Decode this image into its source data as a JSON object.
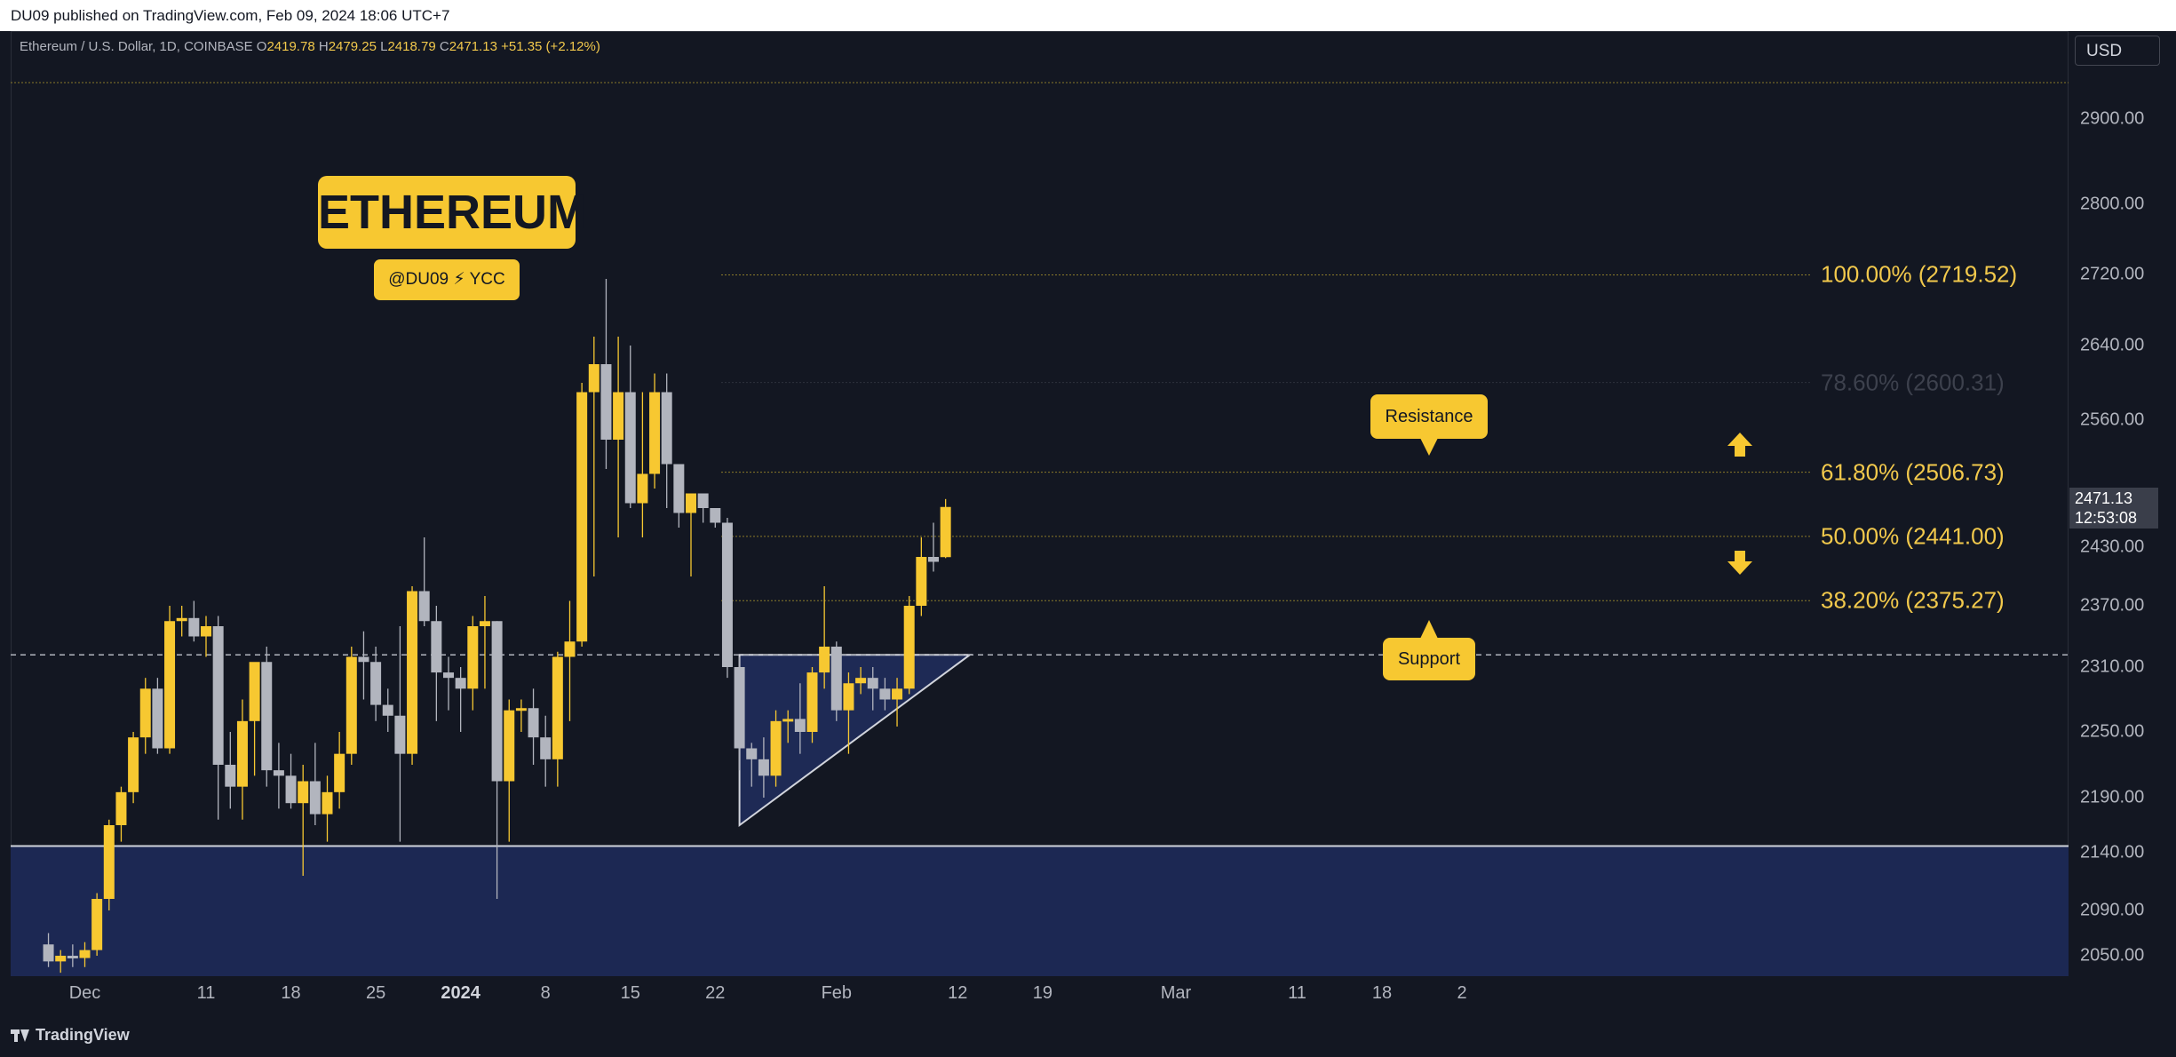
{
  "header": {
    "published_line": "DU09 published on TradingView.com, Feb 09, 2024 18:06 UTC+7"
  },
  "legend": {
    "symbol": "Ethereum / U.S. Dollar, 1D, COINBASE",
    "open_key": "O",
    "open": "2419.78",
    "high_key": "H",
    "high": "2479.25",
    "low_key": "L",
    "low": "2418.79",
    "close_key": "C",
    "close": "2471.13",
    "change": "+51.35 (+2.12%)"
  },
  "currency": "USD",
  "title_badge": "ETHEREUM",
  "author_badge": "@DU09 ⚡ YCC",
  "callouts": {
    "resistance": "Resistance",
    "support": "Support"
  },
  "last_price": {
    "value": "2471.13",
    "countdown": "12:53:08"
  },
  "footer": {
    "brand": "TradingView"
  },
  "colors": {
    "background": "#131722",
    "bull": "#f7c831",
    "bear": "#b2b5be",
    "zone": "#1c2853",
    "fib": "#c9a227"
  },
  "icons": {
    "up_arrow": "arrow-up-icon",
    "down_arrow": "arrow-down-icon",
    "logo": "tradingview-logo-icon"
  },
  "chart_data": {
    "type": "candlestick",
    "title": "ETHEREUM",
    "y_ticks": [
      "2900.00",
      "2800.00",
      "2720.00",
      "2640.00",
      "2560.00",
      "2430.00",
      "2370.00",
      "2310.00",
      "2250.00",
      "2190.00",
      "2140.00",
      "2090.00",
      "2050.00"
    ],
    "x_ticks": [
      {
        "label": "Dec",
        "day": 1
      },
      {
        "label": "11",
        "day": 11
      },
      {
        "label": "18",
        "day": 18
      },
      {
        "label": "25",
        "day": 25
      },
      {
        "label": "2024",
        "day": 32,
        "bold": true
      },
      {
        "label": "8",
        "day": 39
      },
      {
        "label": "15",
        "day": 46
      },
      {
        "label": "22",
        "day": 53
      },
      {
        "label": "Feb",
        "day": 63
      },
      {
        "label": "12",
        "day": 73
      },
      {
        "label": "19",
        "day": 80
      },
      {
        "label": "Mar",
        "day": 91
      },
      {
        "label": "11",
        "day": 101
      },
      {
        "label": "18",
        "day": 108
      },
      {
        "label": "2",
        "day": 115
      }
    ],
    "candles_ohlc_from_day_-3": [
      [
        2060,
        2070,
        2040,
        2045
      ],
      [
        2045,
        2055,
        2035,
        2050
      ],
      [
        2050,
        2060,
        2040,
        2048
      ],
      [
        2048,
        2062,
        2040,
        2055
      ],
      [
        2055,
        2105,
        2050,
        2100
      ],
      [
        2100,
        2170,
        2090,
        2165
      ],
      [
        2165,
        2200,
        2150,
        2195
      ],
      [
        2195,
        2250,
        2185,
        2245
      ],
      [
        2245,
        2300,
        2230,
        2290
      ],
      [
        2290,
        2300,
        2230,
        2235
      ],
      [
        2235,
        2370,
        2230,
        2355
      ],
      [
        2355,
        2370,
        2340,
        2358
      ],
      [
        2358,
        2375,
        2335,
        2340
      ],
      [
        2340,
        2360,
        2320,
        2350
      ],
      [
        2350,
        2360,
        2170,
        2220
      ],
      [
        2220,
        2250,
        2180,
        2200
      ],
      [
        2200,
        2280,
        2170,
        2260
      ],
      [
        2260,
        2310,
        2210,
        2315
      ],
      [
        2315,
        2330,
        2200,
        2215
      ],
      [
        2215,
        2240,
        2180,
        2210
      ],
      [
        2210,
        2230,
        2180,
        2185
      ],
      [
        2185,
        2220,
        2120,
        2205
      ],
      [
        2205,
        2240,
        2165,
        2175
      ],
      [
        2175,
        2210,
        2150,
        2195
      ],
      [
        2195,
        2250,
        2180,
        2230
      ],
      [
        2230,
        2330,
        2220,
        2320
      ],
      [
        2320,
        2345,
        2280,
        2315
      ],
      [
        2315,
        2330,
        2260,
        2275
      ],
      [
        2275,
        2290,
        2250,
        2265
      ],
      [
        2265,
        2350,
        2150,
        2230
      ],
      [
        2230,
        2390,
        2220,
        2385
      ],
      [
        2385,
        2440,
        2350,
        2355
      ],
      [
        2355,
        2370,
        2260,
        2305
      ],
      [
        2305,
        2320,
        2270,
        2300
      ],
      [
        2300,
        2310,
        2250,
        2290
      ],
      [
        2290,
        2360,
        2270,
        2350
      ],
      [
        2350,
        2380,
        2290,
        2355
      ],
      [
        2355,
        2355,
        2100,
        2205
      ],
      [
        2205,
        2280,
        2150,
        2270
      ],
      [
        2270,
        2280,
        2250,
        2272
      ],
      [
        2272,
        2290,
        2220,
        2245
      ],
      [
        2245,
        2265,
        2200,
        2225
      ],
      [
        2225,
        2325,
        2200,
        2320
      ],
      [
        2320,
        2375,
        2260,
        2335
      ],
      [
        2335,
        2600,
        2330,
        2590
      ],
      [
        2590,
        2650,
        2400,
        2620
      ],
      [
        2620,
        2715,
        2510,
        2540
      ],
      [
        2540,
        2650,
        2440,
        2590
      ],
      [
        2590,
        2640,
        2470,
        2475
      ],
      [
        2475,
        2590,
        2440,
        2505
      ],
      [
        2505,
        2610,
        2490,
        2590
      ],
      [
        2590,
        2610,
        2470,
        2515
      ],
      [
        2515,
        2510,
        2450,
        2465
      ],
      [
        2465,
        2470,
        2400,
        2485
      ],
      [
        2485,
        2480,
        2455,
        2470
      ],
      [
        2470,
        2465,
        2450,
        2455
      ],
      [
        2455,
        2460,
        2300,
        2310
      ],
      [
        2310,
        2320,
        2215,
        2235
      ],
      [
        2235,
        2240,
        2200,
        2225
      ],
      [
        2225,
        2245,
        2190,
        2210
      ],
      [
        2210,
        2270,
        2200,
        2260
      ],
      [
        2260,
        2270,
        2240,
        2262
      ],
      [
        2262,
        2295,
        2230,
        2250
      ],
      [
        2250,
        2310,
        2240,
        2305
      ],
      [
        2305,
        2390,
        2290,
        2330
      ],
      [
        2330,
        2335,
        2260,
        2270
      ],
      [
        2270,
        2305,
        2230,
        2295
      ],
      [
        2295,
        2310,
        2285,
        2300
      ],
      [
        2300,
        2310,
        2270,
        2290
      ],
      [
        2290,
        2300,
        2270,
        2280
      ],
      [
        2280,
        2300,
        2255,
        2290
      ],
      [
        2290,
        2380,
        2285,
        2370
      ],
      [
        2370,
        2440,
        2360,
        2420
      ],
      [
        2420,
        2455,
        2405,
        2415
      ],
      [
        2419.78,
        2479.25,
        2418.79,
        2471.13
      ]
    ],
    "horizontal_levels": {
      "support_zone_top": 2146,
      "dashed_level": 2322
    },
    "fibonacci": [
      {
        "level": "100.00%",
        "price": 2719.52,
        "label": "100.00% (2719.52)"
      },
      {
        "level": "78.60%",
        "price": 2600.31,
        "label": "78.60% (2600.31)",
        "faded": true
      },
      {
        "level": "61.80%",
        "price": 2506.73,
        "label": "61.80% (2506.73)"
      },
      {
        "level": "50.00%",
        "price": 2441.0,
        "label": "50.00% (2441.00)"
      },
      {
        "level": "38.20%",
        "price": 2375.27,
        "label": "38.20% (2375.27)"
      }
    ],
    "triangle": {
      "top_price": 2322,
      "bottom_price": 2165,
      "start_day": 55,
      "end_day": 74
    },
    "annotations": [
      "Resistance",
      "Support"
    ]
  }
}
